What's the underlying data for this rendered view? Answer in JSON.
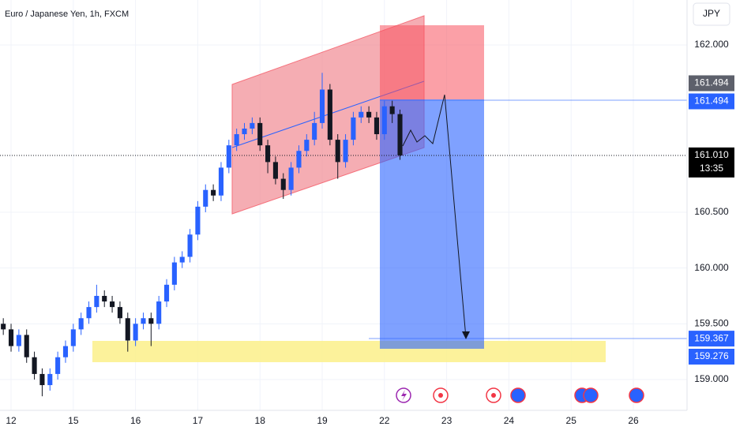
{
  "chart_data": {
    "type": "candlestick",
    "title": "Euro / Japanese Yen, 1h, FXCM",
    "currency": "JPY",
    "up_color": "#2962ff",
    "down_color": "#131722",
    "grid": true,
    "x": [
      -0.125,
      0,
      0.125,
      0.25,
      0.375,
      0.5,
      0.625,
      0.75,
      0.875,
      1,
      1.125,
      1.25,
      1.375,
      1.5,
      1.625,
      1.75,
      1.875,
      2,
      2.125,
      2.25,
      2.375,
      2.5,
      2.625,
      2.75,
      2.875,
      3,
      3.125,
      3.25,
      3.375,
      3.5,
      3.625,
      3.75,
      3.875,
      4,
      4.125,
      4.25,
      4.375,
      4.5,
      4.625,
      4.75,
      4.875,
      5,
      5.125,
      5.25,
      5.375,
      5.5,
      5.625,
      5.75,
      5.875,
      6,
      6.125,
      6.25
    ],
    "open": [
      159.5,
      159.45,
      159.3,
      159.4,
      159.2,
      159.05,
      158.95,
      159.05,
      159.2,
      159.3,
      159.45,
      159.55,
      159.65,
      159.75,
      159.7,
      159.65,
      159.55,
      159.35,
      159.5,
      159.55,
      159.5,
      159.7,
      159.85,
      160.05,
      160.1,
      160.3,
      160.55,
      160.7,
      160.65,
      160.9,
      161.1,
      161.2,
      161.25,
      161.3,
      161.1,
      160.95,
      160.8,
      160.7,
      160.9,
      161.05,
      161.15,
      161.3,
      161.6,
      161.15,
      160.95,
      161.15,
      161.35,
      161.4,
      161.35,
      161.2,
      161.45,
      161.38
    ],
    "high": [
      159.55,
      159.5,
      159.45,
      159.45,
      159.25,
      159.1,
      159.1,
      159.25,
      159.35,
      159.5,
      159.6,
      159.7,
      159.85,
      159.8,
      159.75,
      159.7,
      159.6,
      159.55,
      159.6,
      159.6,
      159.75,
      159.9,
      160.1,
      160.15,
      160.35,
      160.6,
      160.75,
      160.75,
      160.95,
      161.15,
      161.25,
      161.3,
      161.35,
      161.35,
      161.15,
      161.0,
      160.85,
      160.95,
      161.1,
      161.2,
      161.4,
      161.75,
      161.65,
      161.2,
      161.2,
      161.4,
      161.45,
      161.45,
      161.4,
      161.5,
      161.5,
      161.42
    ],
    "low": [
      159.4,
      159.25,
      159.25,
      159.15,
      159.0,
      158.85,
      158.9,
      159.0,
      159.15,
      159.25,
      159.4,
      159.5,
      159.6,
      159.65,
      159.6,
      159.5,
      159.25,
      159.3,
      159.45,
      159.3,
      159.45,
      159.65,
      159.8,
      160.0,
      160.05,
      160.25,
      160.5,
      160.6,
      160.6,
      160.85,
      161.05,
      161.15,
      161.2,
      161.05,
      160.85,
      160.75,
      160.62,
      160.65,
      160.85,
      161.0,
      161.1,
      161.25,
      161.1,
      160.8,
      160.9,
      161.1,
      161.3,
      161.3,
      161.15,
      161.15,
      161.3,
      160.97
    ],
    "close": [
      159.45,
      159.3,
      159.4,
      159.2,
      159.05,
      158.95,
      159.05,
      159.2,
      159.3,
      159.45,
      159.55,
      159.65,
      159.75,
      159.7,
      159.65,
      159.55,
      159.35,
      159.5,
      159.55,
      159.5,
      159.7,
      159.85,
      160.05,
      160.1,
      160.3,
      160.55,
      160.7,
      160.65,
      160.9,
      161.1,
      161.2,
      161.25,
      161.3,
      161.1,
      160.95,
      160.8,
      160.7,
      160.9,
      161.05,
      161.15,
      161.3,
      161.6,
      161.15,
      160.95,
      161.15,
      161.35,
      161.4,
      161.35,
      161.2,
      161.45,
      161.38,
      161.01
    ],
    "xlim": [
      -0.178,
      10.863
    ],
    "xticks": [
      {
        "value": 0,
        "label": "12"
      },
      {
        "value": 1,
        "label": "15"
      },
      {
        "value": 2,
        "label": "16"
      },
      {
        "value": 3,
        "label": "17"
      },
      {
        "value": 4,
        "label": "18"
      },
      {
        "value": 5,
        "label": "19"
      },
      {
        "value": 6,
        "label": "22"
      },
      {
        "value": 7,
        "label": "23"
      },
      {
        "value": 8,
        "label": "24"
      },
      {
        "value": 9,
        "label": "25"
      },
      {
        "value": 10,
        "label": "26"
      }
    ],
    "ylim": [
      158.724,
      162.403
    ],
    "yticks": [
      {
        "value": 159,
        "label": "159.000"
      },
      {
        "value": 159.5,
        "label": "159.500"
      },
      {
        "value": 160,
        "label": "160.000"
      },
      {
        "value": 160.5,
        "label": "160.500"
      },
      {
        "value": 162,
        "label": "162.000"
      }
    ],
    "price_labels": [
      {
        "value": 161.494,
        "label": "161.494",
        "color": "#5d606b"
      },
      {
        "value": 161.494,
        "label": "161.494",
        "color": "#2962ff"
      },
      {
        "value": 161.01,
        "label": "161.010",
        "color": "#000000"
      },
      {
        "value": 159.367,
        "label": "159.367",
        "color": "#2962ff"
      },
      {
        "value": 159.276,
        "label": "159.276",
        "color": "#2962ff"
      }
    ],
    "countdown": "13:35"
  }
}
